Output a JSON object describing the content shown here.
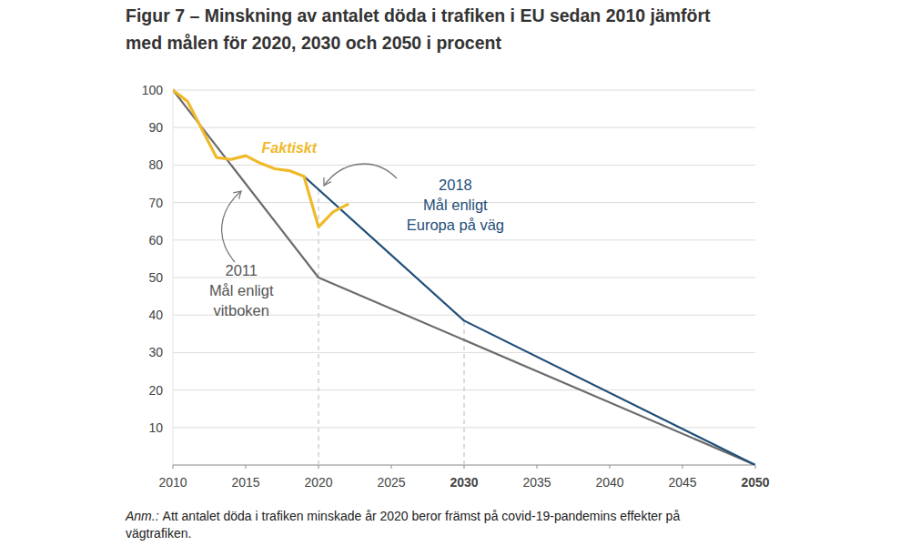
{
  "chart_data": {
    "type": "line",
    "title": "Figur 7 – Minskning av antalet döda i trafiken i EU sedan 2010 jämfört\nmed målen för 2020, 2030 och 2050 i procent",
    "series": [
      {
        "name": "Faktiskt",
        "color": "#f0b929",
        "x": [
          2010,
          2011,
          2012,
          2013,
          2014,
          2015,
          2016,
          2017,
          2018,
          2019,
          2020,
          2021,
          2022
        ],
        "values": [
          100,
          97,
          89.5,
          82,
          81.5,
          82.5,
          80.5,
          79,
          78.5,
          77,
          63.5,
          67.5,
          69.5
        ]
      },
      {
        "name": "2011\nMål enligt\nvitboken",
        "color": "#6b6b6b",
        "x": [
          2010,
          2020,
          2050
        ],
        "values": [
          100,
          50,
          0
        ]
      },
      {
        "name": "2018\nMål enligt\nEuropa på väg",
        "color": "#1f4e79",
        "x": [
          2019,
          2030,
          2050
        ],
        "values": [
          77,
          38.5,
          0
        ]
      }
    ],
    "xlim": [
      2010,
      2050
    ],
    "xticks": [
      2010,
      2015,
      2020,
      2025,
      2030,
      2035,
      2040,
      2045,
      2050
    ],
    "ylim": [
      0,
      100
    ],
    "yticks": [
      10,
      20,
      30,
      40,
      50,
      60,
      70,
      80,
      90,
      100
    ],
    "grid": true,
    "vlines": [
      2020,
      2030
    ],
    "note_label": "Anm.:",
    "note": "Att antalet döda i trafiken minskade år 2020 beror främst på covid-19-pandemins effekter på\nvägtrafiken."
  }
}
